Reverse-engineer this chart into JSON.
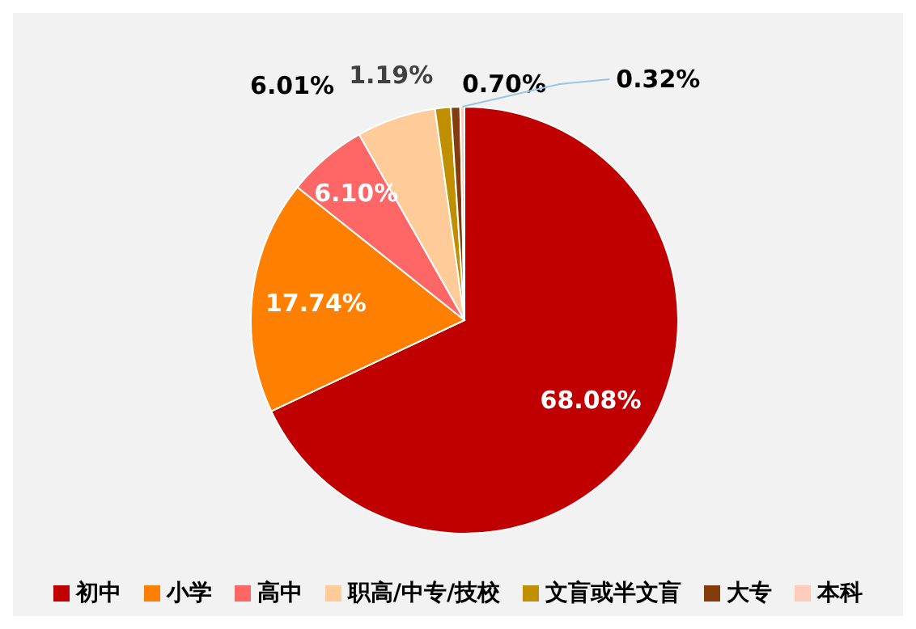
{
  "chart_data": {
    "type": "pie",
    "categories": [
      "初中",
      "小学",
      "高中",
      "职高/中专/技校",
      "文盲或半文盲",
      "大专",
      "本科"
    ],
    "values": [
      68.08,
      17.74,
      6.1,
      6.01,
      1.19,
      0.7,
      0.32
    ],
    "colors": [
      "#c00000",
      "#ff8000",
      "#ff6666",
      "#ffcc99",
      "#bf8f00",
      "#843c0c",
      "#ffccbb"
    ],
    "value_labels": [
      "68.08%",
      "17.74%",
      "6.10%",
      "6.01%",
      "1.19%",
      "0.70%",
      "0.32%"
    ],
    "legend": "bottom"
  }
}
